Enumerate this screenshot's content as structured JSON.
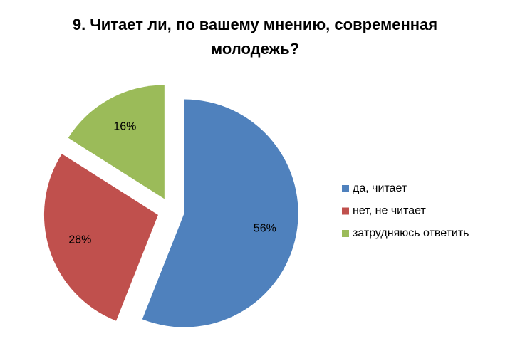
{
  "chart_data": {
    "type": "pie",
    "title": "9. Читает ли, по вашему мнению, современная молодежь?",
    "categories": [
      "да, читает",
      "нет, не читает",
      "затрудняюсь ответить"
    ],
    "values": [
      56,
      28,
      16
    ],
    "value_labels": [
      "56%",
      "28%",
      "16%"
    ],
    "colors": [
      "#4f81bd",
      "#c0504d",
      "#9bbb59"
    ],
    "legend": "right"
  }
}
